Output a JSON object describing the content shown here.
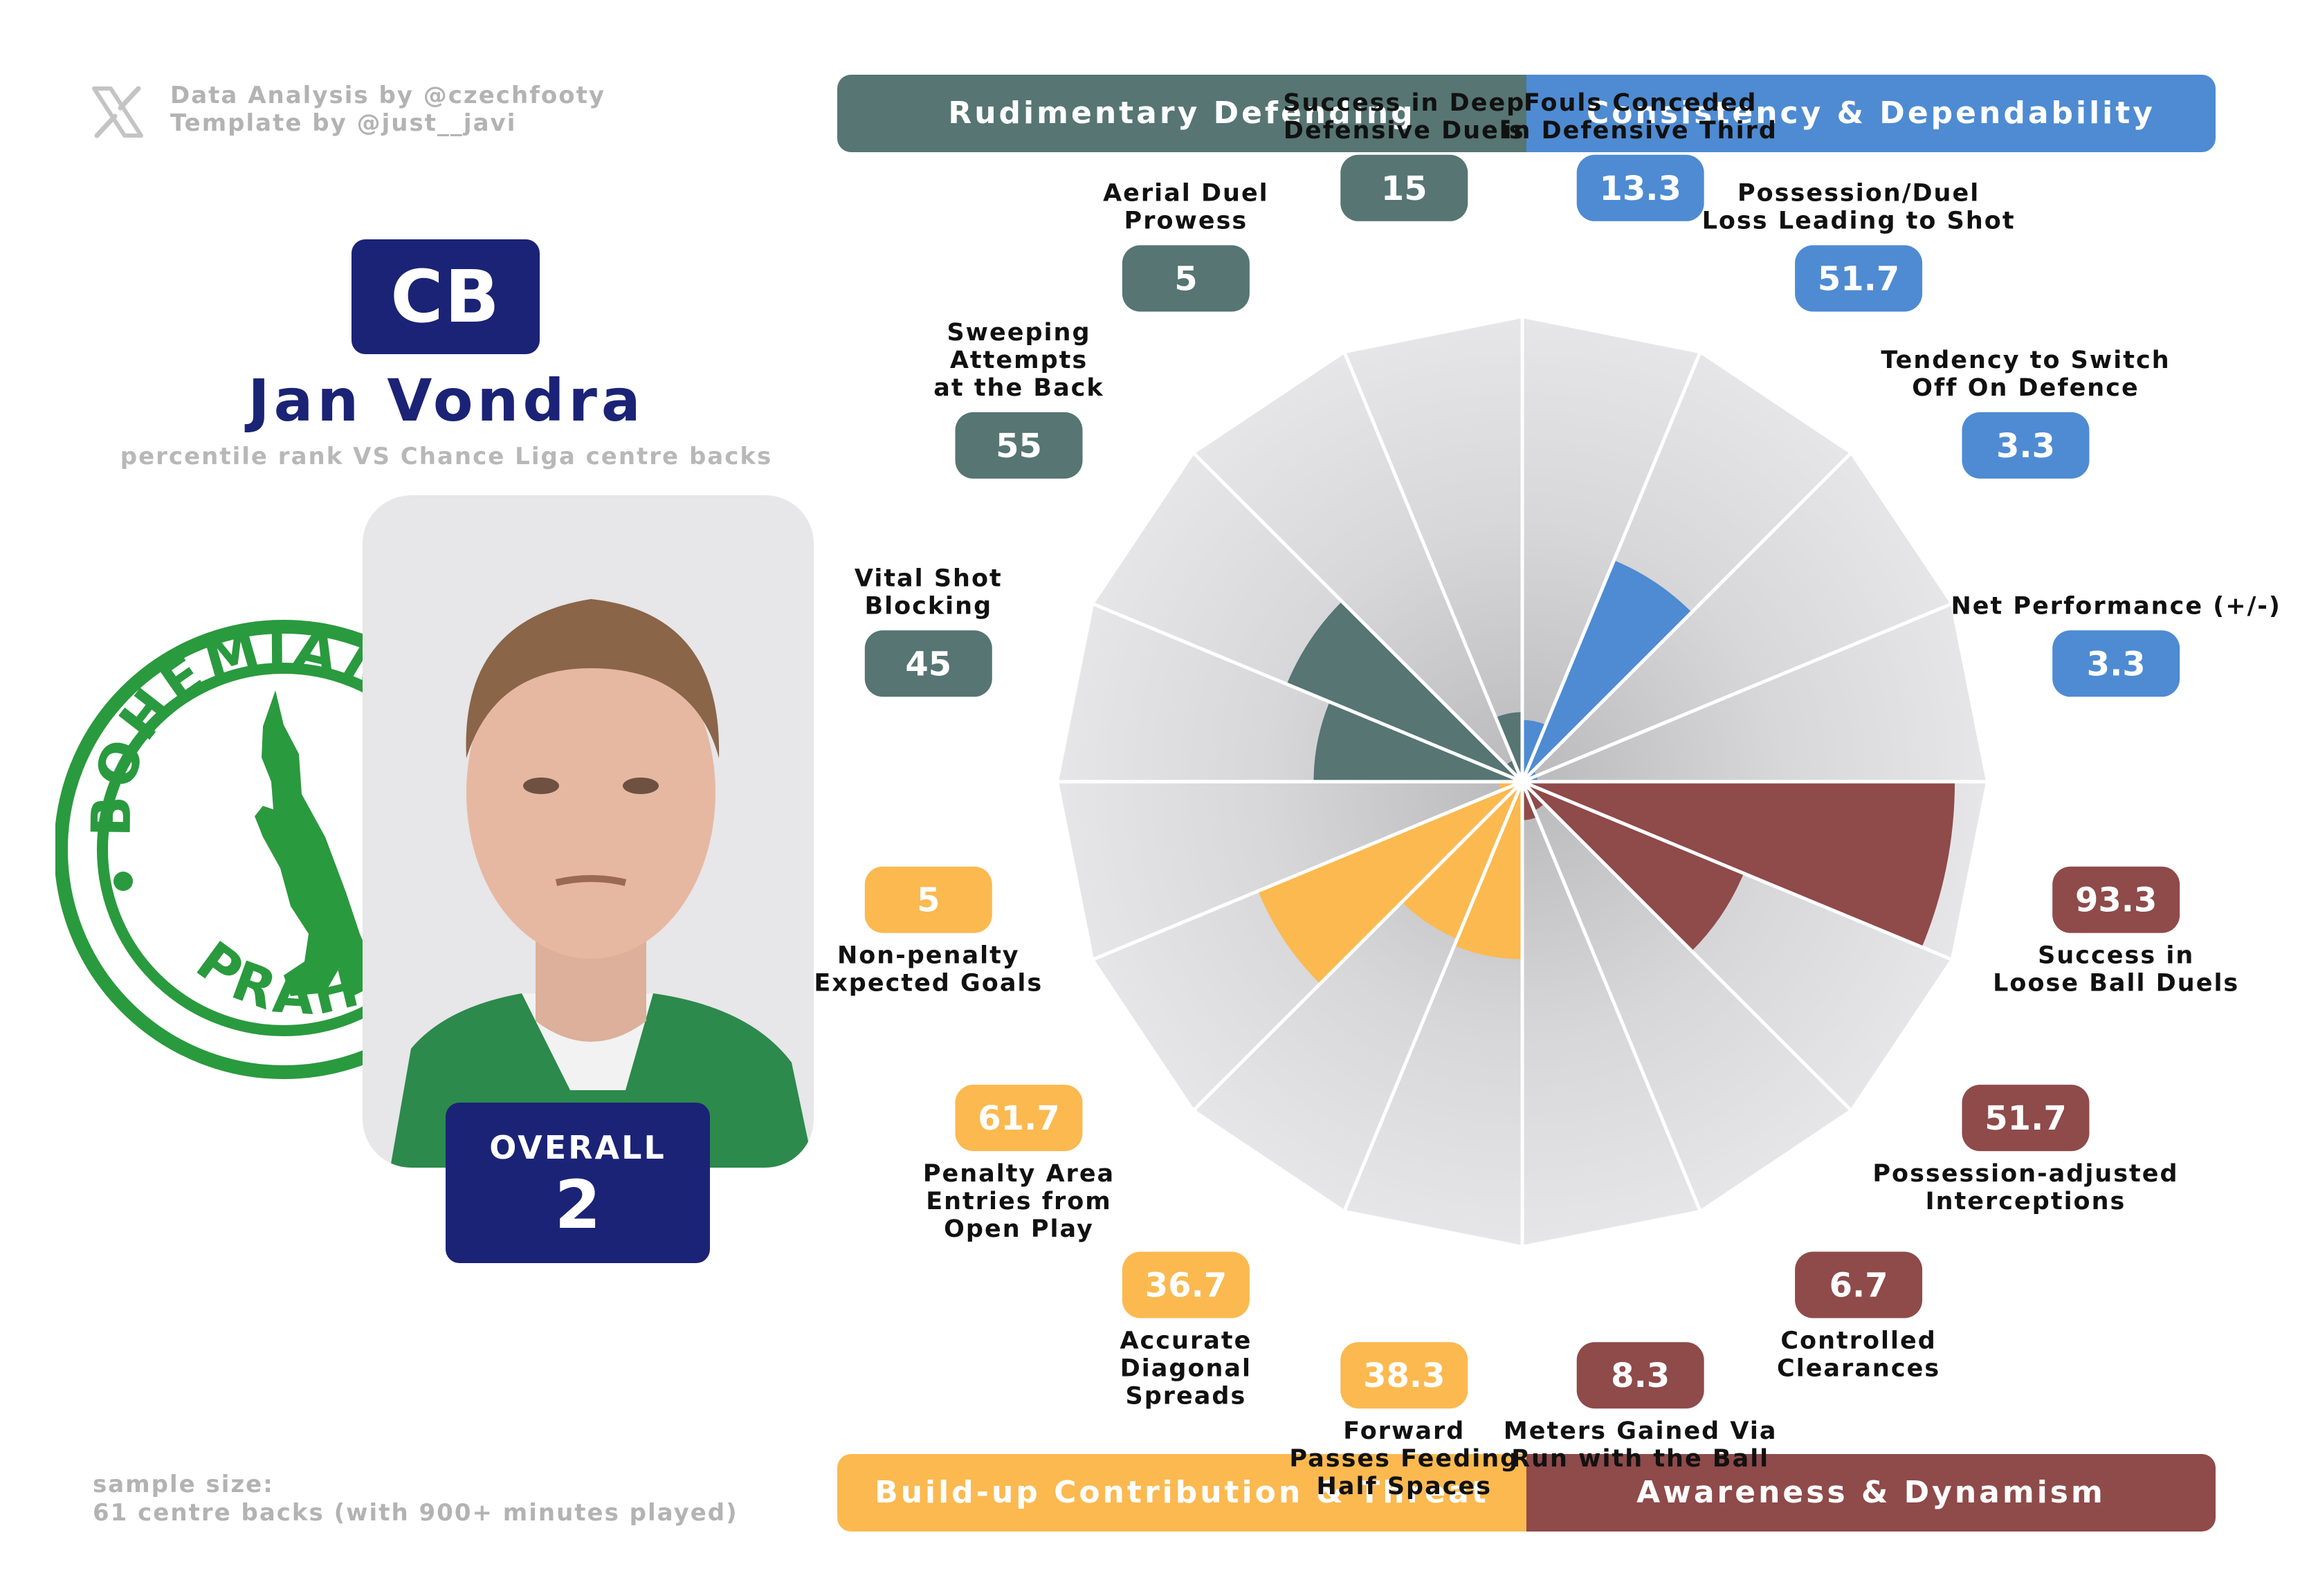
{
  "credits": {
    "analysis": "Data Analysis by @czechfooty",
    "template": "Template by @just__javi"
  },
  "player": {
    "position": "CB",
    "name": "Jan Vondra",
    "subtitle": "percentile rank VS Chance Liga centre backs",
    "overall_label": "OVERALL",
    "overall_value": "2"
  },
  "club_badge": {
    "text_top": "BOHEMIANS",
    "text_bottom": "PRAHA",
    "color": "#2a9a3e"
  },
  "sample": {
    "line1": "sample size:",
    "line2": "61 centre backs (with 900+ minutes played)"
  },
  "categories": {
    "rudimentary": "Rudimentary Defending",
    "consistency": "Consistency & Dependability",
    "buildup": "Build-up Contribution & Threat",
    "awareness": "Awareness & Dynamism"
  },
  "colors": {
    "rudimentary": "#567573",
    "consistency": "#4e8bd2",
    "buildup": "#fbb950",
    "awareness": "#8f4a4a",
    "navy": "#1b2376",
    "background_segment": "#e4e4e6"
  },
  "chart_data": {
    "type": "radar",
    "scale": [
      0,
      100
    ],
    "series": [
      {
        "values": [
          {
            "label": [
              "Fouls Conceded",
              "in Defensive Third"
            ],
            "value": 13.3,
            "group": "consistency"
          },
          {
            "label": [
              "Possession/Duel",
              "Loss Leading to Shot"
            ],
            "value": 51.7,
            "group": "consistency"
          },
          {
            "label": [
              "Tendency to Switch",
              "Off On Defence"
            ],
            "value": 3.3,
            "group": "consistency"
          },
          {
            "label": [
              "Net Performance (+/-)"
            ],
            "value": 3.3,
            "group": "consistency"
          },
          {
            "label": [
              "Success in",
              "Loose Ball Duels"
            ],
            "value": 93.3,
            "group": "awareness"
          },
          {
            "label": [
              "Possession-adjusted",
              "Interceptions"
            ],
            "value": 51.7,
            "group": "awareness"
          },
          {
            "label": [
              "Controlled",
              "Clearances"
            ],
            "value": 6.7,
            "group": "awareness"
          },
          {
            "label": [
              "Meters Gained Via",
              "Run with the Ball"
            ],
            "value": 8.3,
            "group": "awareness"
          },
          {
            "label": [
              "Forward",
              "Passes Feeding",
              "Half Spaces"
            ],
            "value": 38.3,
            "group": "buildup"
          },
          {
            "label": [
              "Accurate",
              "Diagonal",
              "Spreads"
            ],
            "value": 36.7,
            "group": "buildup"
          },
          {
            "label": [
              "Penalty Area",
              "Entries from",
              "Open Play"
            ],
            "value": 61.7,
            "group": "buildup"
          },
          {
            "label": [
              "Non-penalty",
              "Expected Goals"
            ],
            "value": 5,
            "group": "buildup"
          },
          {
            "label": [
              "Vital Shot",
              "Blocking"
            ],
            "value": 45,
            "group": "rudimentary"
          },
          {
            "label": [
              "Sweeping",
              "Attempts",
              "at the Back"
            ],
            "value": 55,
            "group": "rudimentary"
          },
          {
            "label": [
              "Aerial Duel",
              "Prowess"
            ],
            "value": 5,
            "group": "rudimentary"
          },
          {
            "label": [
              "Success in Deep",
              "Defensive Duels"
            ],
            "value": 15,
            "group": "rudimentary"
          }
        ]
      }
    ]
  }
}
